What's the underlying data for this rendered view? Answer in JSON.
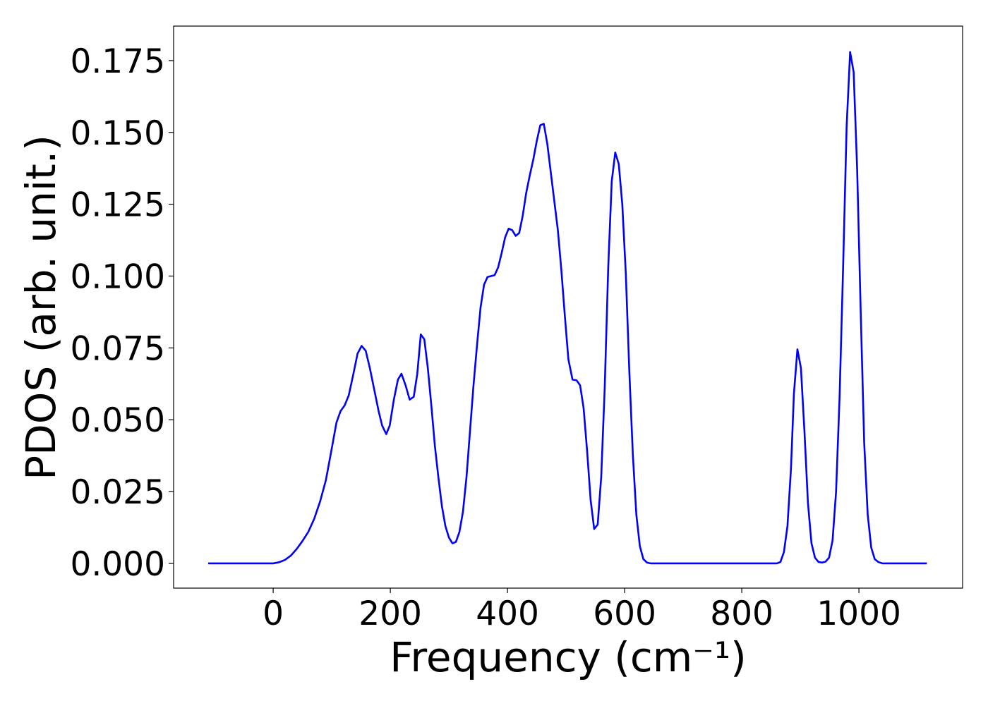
{
  "chart_data": {
    "type": "line",
    "xlabel": "Frequency (cm⁻¹)",
    "ylabel": "PDOS (arb. unit.)",
    "x": [
      -111,
      -50,
      0,
      10,
      20,
      30,
      40,
      50,
      60,
      70,
      80,
      90,
      100,
      108,
      115,
      122,
      129,
      137,
      144,
      151,
      158,
      165,
      172,
      180,
      186,
      193,
      199,
      206,
      213,
      219,
      226,
      233,
      240,
      246,
      252,
      258,
      264,
      270,
      276,
      282,
      288,
      294,
      300,
      306,
      312,
      318,
      324,
      330,
      336,
      342,
      348,
      354,
      360,
      366,
      372,
      378,
      384,
      390,
      396,
      402,
      408,
      414,
      420,
      426,
      432,
      438,
      444,
      450,
      456,
      462,
      468,
      474,
      480,
      486,
      492,
      498,
      504,
      511,
      518,
      524,
      530,
      536,
      542,
      548,
      554,
      560,
      566,
      572,
      578,
      584,
      590,
      596,
      602,
      608,
      614,
      620,
      626,
      632,
      638,
      645,
      700,
      800,
      860,
      866,
      872,
      878,
      884,
      889,
      895,
      901,
      907,
      913,
      919,
      925,
      931,
      937,
      943,
      949,
      955,
      961,
      967,
      973,
      979,
      985,
      991,
      997,
      1003,
      1009,
      1015,
      1021,
      1027,
      1033,
      1040,
      1116
    ],
    "series": [
      {
        "name": "PDOS",
        "color": "#0000ff",
        "values": [
          0,
          0,
          0,
          0.0004,
          0.0012,
          0.0027,
          0.005,
          0.0078,
          0.011,
          0.0155,
          0.0215,
          0.029,
          0.04,
          0.049,
          0.053,
          0.055,
          0.0585,
          0.066,
          0.073,
          0.0757,
          0.074,
          0.068,
          0.061,
          0.053,
          0.048,
          0.045,
          0.048,
          0.057,
          0.064,
          0.066,
          0.062,
          0.057,
          0.058,
          0.066,
          0.0797,
          0.078,
          0.068,
          0.055,
          0.041,
          0.03,
          0.02,
          0.013,
          0.009,
          0.007,
          0.0075,
          0.011,
          0.018,
          0.03,
          0.046,
          0.062,
          0.076,
          0.089,
          0.097,
          0.0997,
          0.1,
          0.1003,
          0.103,
          0.108,
          0.1135,
          0.1165,
          0.116,
          0.114,
          0.115,
          0.121,
          0.129,
          0.135,
          0.1405,
          0.147,
          0.1525,
          0.153,
          0.146,
          0.136,
          0.126,
          0.116,
          0.102,
          0.086,
          0.071,
          0.064,
          0.0637,
          0.062,
          0.054,
          0.039,
          0.022,
          0.012,
          0.0135,
          0.03,
          0.061,
          0.103,
          0.133,
          0.143,
          0.139,
          0.125,
          0.101,
          0.067,
          0.038,
          0.017,
          0.006,
          0.0015,
          0.0003,
          0,
          0,
          0,
          0,
          0.0005,
          0.004,
          0.013,
          0.033,
          0.059,
          0.0745,
          0.068,
          0.046,
          0.021,
          0.007,
          0.002,
          0.0005,
          0.0003,
          0.0006,
          0.002,
          0.008,
          0.025,
          0.058,
          0.103,
          0.152,
          0.178,
          0.171,
          0.137,
          0.088,
          0.042,
          0.017,
          0.0055,
          0.0015,
          0.0005,
          0,
          0
        ]
      }
    ],
    "xlim": [
      -170,
      1177
    ],
    "xticks": [
      0,
      200,
      400,
      600,
      800,
      1000
    ],
    "ylim": [
      -0.0086,
      0.187
    ],
    "yticks": [
      {
        "value": 0,
        "label": "0.000"
      },
      0.025,
      {
        "value": 0.05,
        "label": "0.050"
      },
      0.075,
      {
        "value": 0.1,
        "label": "0.100"
      },
      0.125,
      {
        "value": 0.15,
        "label": "0.150"
      },
      0.175
    ]
  }
}
